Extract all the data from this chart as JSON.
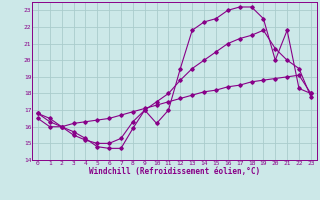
{
  "background_color": "#cce8e8",
  "grid_color": "#aacccc",
  "line_color": "#880088",
  "xlim": [
    -0.5,
    23.5
  ],
  "ylim": [
    14,
    23.5
  ],
  "yticks": [
    14,
    15,
    16,
    17,
    18,
    19,
    20,
    21,
    22,
    23
  ],
  "xticks": [
    0,
    1,
    2,
    3,
    4,
    5,
    6,
    7,
    8,
    9,
    10,
    11,
    12,
    13,
    14,
    15,
    16,
    17,
    18,
    19,
    20,
    21,
    22,
    23
  ],
  "xlabel": "Windchill (Refroidissement éolien,°C)",
  "line1_x": [
    0,
    1,
    2,
    3,
    4,
    5,
    6,
    7,
    8,
    9,
    10,
    11,
    12,
    13,
    14,
    15,
    16,
    17,
    18,
    19,
    20,
    21,
    22,
    23
  ],
  "line1_y": [
    16.8,
    16.5,
    16.0,
    15.7,
    15.3,
    14.8,
    14.7,
    14.7,
    15.9,
    17.0,
    16.2,
    17.0,
    19.5,
    21.8,
    22.3,
    22.5,
    23.0,
    23.2,
    23.2,
    22.5,
    20.0,
    21.8,
    18.3,
    18.0
  ],
  "line2_x": [
    0,
    1,
    2,
    3,
    4,
    5,
    6,
    7,
    8,
    9,
    10,
    11,
    12,
    13,
    14,
    15,
    16,
    17,
    18,
    19,
    20,
    21,
    22,
    23
  ],
  "line2_y": [
    16.8,
    16.3,
    16.0,
    15.5,
    15.2,
    15.0,
    15.0,
    15.3,
    16.3,
    17.0,
    17.5,
    18.0,
    18.8,
    19.5,
    20.0,
    20.5,
    21.0,
    21.3,
    21.5,
    21.8,
    20.7,
    20.0,
    19.5,
    17.8
  ],
  "line3_x": [
    0,
    1,
    2,
    3,
    4,
    5,
    6,
    7,
    8,
    9,
    10,
    11,
    12,
    13,
    14,
    15,
    16,
    17,
    18,
    19,
    20,
    21,
    22,
    23
  ],
  "line3_y": [
    16.5,
    16.0,
    16.0,
    16.2,
    16.3,
    16.4,
    16.5,
    16.7,
    16.9,
    17.1,
    17.3,
    17.5,
    17.7,
    17.9,
    18.1,
    18.2,
    18.4,
    18.5,
    18.7,
    18.8,
    18.9,
    19.0,
    19.1,
    18.0
  ]
}
